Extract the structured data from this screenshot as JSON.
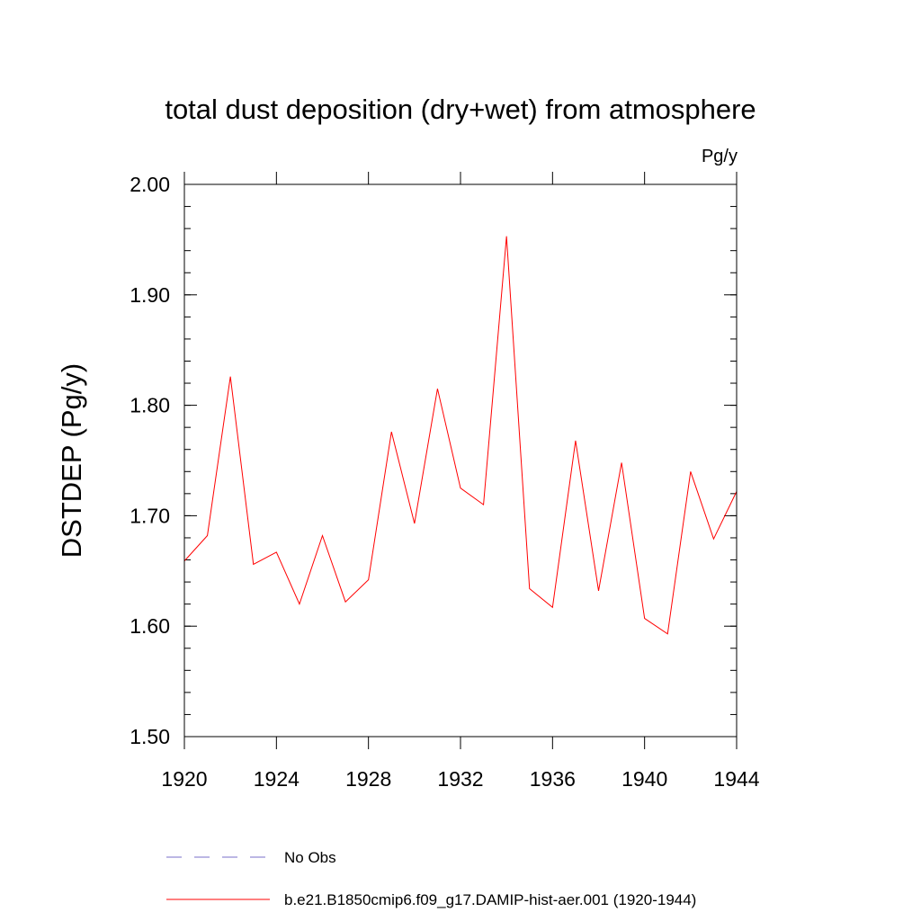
{
  "chart_data": {
    "type": "line",
    "title": "total dust deposition (dry+wet) from atmosphere",
    "units": "Pg/y",
    "ylabel": "DSTDEP  (Pg/y)",
    "xlabel": "",
    "xlim": [
      1920,
      1944
    ],
    "ylim": [
      1.5,
      2.0
    ],
    "x_ticks": [
      1920,
      1924,
      1928,
      1932,
      1936,
      1940,
      1944
    ],
    "x_tick_labels": [
      "1920",
      "1924",
      "1928",
      "1932",
      "1936",
      "1940",
      "1944"
    ],
    "y_ticks": [
      1.5,
      1.6,
      1.7,
      1.8,
      1.9,
      2.0
    ],
    "y_tick_labels": [
      "1.50",
      "1.60",
      "1.70",
      "1.80",
      "1.90",
      "2.00"
    ],
    "grid": false,
    "legend_position": "bottom",
    "series": [
      {
        "name": "b.e21.B1850cmip6.f09_g17.DAMIP-hist-aer.001 (1920-1944)",
        "color": "#ff0000",
        "style": "solid",
        "x": [
          1920,
          1921,
          1922,
          1923,
          1924,
          1925,
          1926,
          1927,
          1928,
          1929,
          1930,
          1931,
          1932,
          1933,
          1934,
          1935,
          1936,
          1937,
          1938,
          1939,
          1940,
          1941,
          1942,
          1943,
          1944
        ],
        "y": [
          1.659,
          1.682,
          1.826,
          1.656,
          1.667,
          1.62,
          1.682,
          1.622,
          1.642,
          1.776,
          1.693,
          1.815,
          1.725,
          1.71,
          1.953,
          1.634,
          1.617,
          1.768,
          1.632,
          1.748,
          1.607,
          1.593,
          1.74,
          1.679,
          1.722
        ]
      }
    ],
    "legend": [
      {
        "label": "No Obs",
        "color": "#7a6fc8",
        "style": "dashed"
      },
      {
        "label": "b.e21.B1850cmip6.f09_g17.DAMIP-hist-aer.001 (1920-1944)",
        "color": "#ff0000",
        "style": "solid"
      }
    ]
  }
}
